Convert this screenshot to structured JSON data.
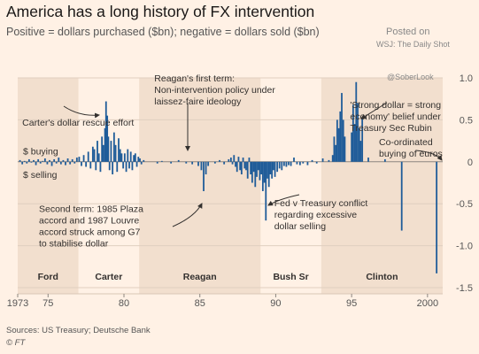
{
  "title": "America has a long history of FX intervention",
  "subtitle": "Positive = dollars purchased ($bn); negative = dollars sold ($bn)",
  "watermark": {
    "line1": "Posted on",
    "line2": "WSJ: The Daily Shot",
    "line3": "@SoberLook"
  },
  "source": "Sources: US Treasury; Deutsche Bank",
  "credit": "© FT",
  "chart_data": {
    "type": "bar",
    "xlim": [
      1973,
      2001
    ],
    "ylim": [
      -1.5,
      1.0
    ],
    "x_ticks": [
      {
        "v": 1973,
        "label": "1973"
      },
      {
        "v": 1975,
        "label": "75"
      },
      {
        "v": 1980,
        "label": "80"
      },
      {
        "v": 1985,
        "label": "85"
      },
      {
        "v": 1990,
        "label": "90"
      },
      {
        "v": 1995,
        "label": "95"
      },
      {
        "v": 2000,
        "label": "2000"
      }
    ],
    "y_ticks": [
      {
        "v": 1.0,
        "label": "1.0"
      },
      {
        "v": 0.5,
        "label": "0.5"
      },
      {
        "v": 0,
        "label": "0"
      },
      {
        "v": -0.5,
        "label": "-0.5"
      },
      {
        "v": -1.0,
        "label": "-1.0"
      },
      {
        "v": -1.5,
        "label": "-1.5"
      }
    ],
    "bar_color": "#1f5c99",
    "shade_color": "#f2dfce",
    "eras": [
      {
        "label": "Ford",
        "start": 1973.0,
        "end": 1977.0,
        "shaded": true
      },
      {
        "label": "Carter",
        "start": 1977.0,
        "end": 1981.0,
        "shaded": false
      },
      {
        "label": "Reagan",
        "start": 1981.0,
        "end": 1989.0,
        "shaded": true
      },
      {
        "label": "Bush Sr",
        "start": 1989.0,
        "end": 1993.0,
        "shaded": false
      },
      {
        "label": "Clinton",
        "start": 1993.0,
        "end": 2001.0,
        "shaded": true
      }
    ],
    "side_labels": [
      {
        "text": "$ buying",
        "y": 0.13
      },
      {
        "text": "$ selling",
        "y": -0.15
      }
    ],
    "annotations": [
      {
        "lines": [
          "Carter's dollar rescue effort"
        ],
        "x": 1973.3,
        "y": 0.43
      },
      {
        "lines": [
          "Reagan's first term:",
          "Non-intervention policy under",
          "laissez-faire ideology"
        ],
        "x": 1982.0,
        "y": 0.96
      },
      {
        "lines": [
          "'Strong dollar = strong",
          "economy' belief under",
          "Treasury Sec Rubin"
        ],
        "x": 1994.9,
        "y": 0.64
      },
      {
        "lines": [
          "Co-ordinated",
          "buying of euros"
        ],
        "x": 1996.8,
        "y": 0.2
      },
      {
        "lines": [
          "Second term: 1985 Plaza",
          "accord and 1987 Louvre",
          "accord struck among G7",
          "to stabilise dollar"
        ],
        "x": 1974.4,
        "y": -0.6
      },
      {
        "lines": [
          "Fed v Treasury conflict",
          "regarding excessive",
          "dollar selling"
        ],
        "x": 1989.9,
        "y": -0.53
      }
    ],
    "values": [
      {
        "x": 1973.15,
        "y": 0.02
      },
      {
        "x": 1973.3,
        "y": -0.03
      },
      {
        "x": 1973.45,
        "y": 0.01
      },
      {
        "x": 1973.6,
        "y": -0.02
      },
      {
        "x": 1973.75,
        "y": 0.03
      },
      {
        "x": 1973.9,
        "y": -0.01
      },
      {
        "x": 1974.05,
        "y": 0.02
      },
      {
        "x": 1974.2,
        "y": -0.04
      },
      {
        "x": 1974.35,
        "y": 0.03
      },
      {
        "x": 1974.5,
        "y": -0.02
      },
      {
        "x": 1974.65,
        "y": 0.01
      },
      {
        "x": 1974.8,
        "y": 0.04
      },
      {
        "x": 1974.95,
        "y": -0.03
      },
      {
        "x": 1975.1,
        "y": 0.02
      },
      {
        "x": 1975.25,
        "y": -0.05
      },
      {
        "x": 1975.4,
        "y": 0.03
      },
      {
        "x": 1975.55,
        "y": -0.02
      },
      {
        "x": 1975.7,
        "y": 0.05
      },
      {
        "x": 1975.85,
        "y": -0.03
      },
      {
        "x": 1976.0,
        "y": 0.02
      },
      {
        "x": 1976.15,
        "y": -0.04
      },
      {
        "x": 1976.3,
        "y": 0.04
      },
      {
        "x": 1976.45,
        "y": -0.03
      },
      {
        "x": 1976.6,
        "y": 0.03
      },
      {
        "x": 1976.75,
        "y": -0.02
      },
      {
        "x": 1976.9,
        "y": 0.05
      },
      {
        "x": 1977.05,
        "y": 0.06
      },
      {
        "x": 1977.2,
        "y": -0.05
      },
      {
        "x": 1977.35,
        "y": 0.08
      },
      {
        "x": 1977.5,
        "y": -0.06
      },
      {
        "x": 1977.65,
        "y": 0.12
      },
      {
        "x": 1977.8,
        "y": -0.08
      },
      {
        "x": 1977.95,
        "y": 0.18
      },
      {
        "x": 1978.05,
        "y": 0.15
      },
      {
        "x": 1978.15,
        "y": -0.1
      },
      {
        "x": 1978.25,
        "y": 0.25
      },
      {
        "x": 1978.35,
        "y": 0.1
      },
      {
        "x": 1978.45,
        "y": -0.12
      },
      {
        "x": 1978.55,
        "y": 0.3
      },
      {
        "x": 1978.65,
        "y": 0.2
      },
      {
        "x": 1978.75,
        "y": 0.4
      },
      {
        "x": 1978.82,
        "y": 0.72
      },
      {
        "x": 1978.9,
        "y": 0.55
      },
      {
        "x": 1978.97,
        "y": 0.3
      },
      {
        "x": 1979.05,
        "y": -0.1
      },
      {
        "x": 1979.15,
        "y": 0.25
      },
      {
        "x": 1979.25,
        "y": -0.15
      },
      {
        "x": 1979.35,
        "y": 0.35
      },
      {
        "x": 1979.45,
        "y": 0.2
      },
      {
        "x": 1979.55,
        "y": -0.12
      },
      {
        "x": 1979.65,
        "y": 0.28
      },
      {
        "x": 1979.75,
        "y": 0.15
      },
      {
        "x": 1979.85,
        "y": 0.1
      },
      {
        "x": 1979.95,
        "y": -0.08
      },
      {
        "x": 1980.05,
        "y": 0.1
      },
      {
        "x": 1980.15,
        "y": -0.12
      },
      {
        "x": 1980.25,
        "y": 0.15
      },
      {
        "x": 1980.35,
        "y": -0.08
      },
      {
        "x": 1980.45,
        "y": 0.12
      },
      {
        "x": 1980.55,
        "y": -0.1
      },
      {
        "x": 1980.65,
        "y": 0.08
      },
      {
        "x": 1980.75,
        "y": 0.1
      },
      {
        "x": 1980.85,
        "y": -0.06
      },
      {
        "x": 1980.95,
        "y": 0.06
      },
      {
        "x": 1981.05,
        "y": 0.04
      },
      {
        "x": 1981.15,
        "y": -0.03
      },
      {
        "x": 1981.3,
        "y": 0.02
      },
      {
        "x": 1982.2,
        "y": -0.02
      },
      {
        "x": 1982.5,
        "y": 0.01
      },
      {
        "x": 1983.1,
        "y": -0.02
      },
      {
        "x": 1983.6,
        "y": 0.02
      },
      {
        "x": 1984.1,
        "y": -0.02
      },
      {
        "x": 1984.5,
        "y": -0.03
      },
      {
        "x": 1984.9,
        "y": -0.05
      },
      {
        "x": 1985.1,
        "y": -0.1
      },
      {
        "x": 1985.25,
        "y": -0.35
      },
      {
        "x": 1985.4,
        "y": -0.15
      },
      {
        "x": 1985.55,
        "y": -0.05
      },
      {
        "x": 1986.0,
        "y": -0.02
      },
      {
        "x": 1986.3,
        "y": 0.02
      },
      {
        "x": 1986.6,
        "y": -0.03
      },
      {
        "x": 1986.9,
        "y": 0.03
      },
      {
        "x": 1987.05,
        "y": 0.05
      },
      {
        "x": 1987.15,
        "y": -0.03
      },
      {
        "x": 1987.25,
        "y": 0.08
      },
      {
        "x": 1987.35,
        "y": -0.06
      },
      {
        "x": 1987.45,
        "y": -0.12
      },
      {
        "x": 1987.55,
        "y": 0.06
      },
      {
        "x": 1987.65,
        "y": -0.1
      },
      {
        "x": 1987.75,
        "y": -0.15
      },
      {
        "x": 1987.85,
        "y": 0.05
      },
      {
        "x": 1987.95,
        "y": -0.08
      },
      {
        "x": 1988.05,
        "y": -0.1
      },
      {
        "x": 1988.15,
        "y": -0.2
      },
      {
        "x": 1988.25,
        "y": 0.05
      },
      {
        "x": 1988.35,
        "y": -0.15
      },
      {
        "x": 1988.45,
        "y": -0.25
      },
      {
        "x": 1988.55,
        "y": -0.12
      },
      {
        "x": 1988.65,
        "y": -0.3
      },
      {
        "x": 1988.75,
        "y": -0.18
      },
      {
        "x": 1988.85,
        "y": -0.1
      },
      {
        "x": 1988.95,
        "y": -0.22
      },
      {
        "x": 1989.05,
        "y": -0.15
      },
      {
        "x": 1989.15,
        "y": -0.35
      },
      {
        "x": 1989.25,
        "y": -0.25
      },
      {
        "x": 1989.35,
        "y": -0.7
      },
      {
        "x": 1989.45,
        "y": -0.2
      },
      {
        "x": 1989.55,
        "y": -0.3
      },
      {
        "x": 1989.65,
        "y": -0.15
      },
      {
        "x": 1989.75,
        "y": -0.2
      },
      {
        "x": 1989.85,
        "y": -0.1
      },
      {
        "x": 1989.95,
        "y": -0.18
      },
      {
        "x": 1990.1,
        "y": -0.12
      },
      {
        "x": 1990.25,
        "y": -0.08
      },
      {
        "x": 1990.4,
        "y": -0.1
      },
      {
        "x": 1990.55,
        "y": -0.05
      },
      {
        "x": 1990.7,
        "y": -0.06
      },
      {
        "x": 1990.85,
        "y": -0.04
      },
      {
        "x": 1991.0,
        "y": -0.05
      },
      {
        "x": 1991.2,
        "y": 0.05
      },
      {
        "x": 1991.4,
        "y": -0.03
      },
      {
        "x": 1991.6,
        "y": -0.04
      },
      {
        "x": 1991.8,
        "y": -0.02
      },
      {
        "x": 1992.1,
        "y": -0.04
      },
      {
        "x": 1992.4,
        "y": 0.02
      },
      {
        "x": 1992.7,
        "y": -0.02
      },
      {
        "x": 1993.1,
        "y": 0.04
      },
      {
        "x": 1993.5,
        "y": 0.02
      },
      {
        "x": 1993.75,
        "y": 0.08
      },
      {
        "x": 1993.85,
        "y": 0.3
      },
      {
        "x": 1993.95,
        "y": 0.2
      },
      {
        "x": 1994.05,
        "y": 0.5
      },
      {
        "x": 1994.15,
        "y": 0.4
      },
      {
        "x": 1994.25,
        "y": 0.6
      },
      {
        "x": 1994.35,
        "y": 0.82
      },
      {
        "x": 1994.45,
        "y": 0.5
      },
      {
        "x": 1994.55,
        "y": 0.3
      },
      {
        "x": 1995.0,
        "y": 0.35
      },
      {
        "x": 1995.1,
        "y": 0.68
      },
      {
        "x": 1995.2,
        "y": 0.45
      },
      {
        "x": 1995.3,
        "y": 0.95
      },
      {
        "x": 1995.4,
        "y": 0.7
      },
      {
        "x": 1995.5,
        "y": 0.4
      },
      {
        "x": 1995.6,
        "y": 0.25
      },
      {
        "x": 1995.7,
        "y": 0.52
      },
      {
        "x": 1996.1,
        "y": 0.05
      },
      {
        "x": 1997.2,
        "y": 0.03
      },
      {
        "x": 1998.3,
        "y": -0.82
      },
      {
        "x": 2000.6,
        "y": -1.33
      }
    ]
  }
}
